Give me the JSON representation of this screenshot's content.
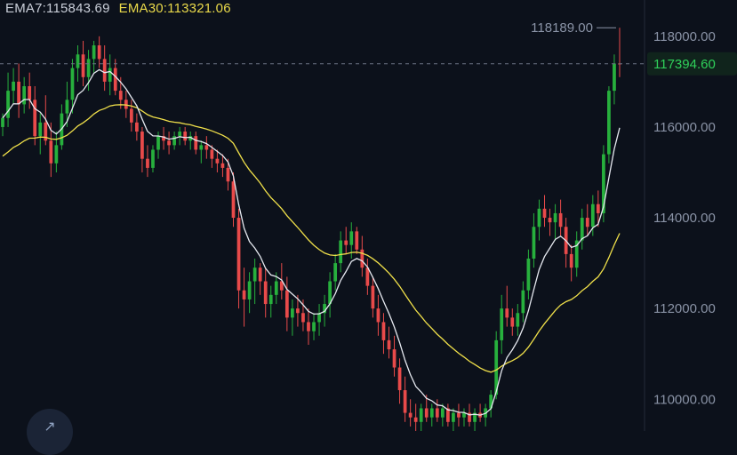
{
  "legend": {
    "ema7": "EMA7:115843.69",
    "ema30": "EMA30:113321.06"
  },
  "chart_data": {
    "type": "candlestick",
    "ylim": [
      109300,
      118800
    ],
    "y_ticks": [
      {
        "value": 118000,
        "label": "118000.00"
      },
      {
        "value": 116000,
        "label": "116000.00"
      },
      {
        "value": 114000,
        "label": "114000.00"
      },
      {
        "value": 112000,
        "label": "112000.00"
      },
      {
        "value": 110000,
        "label": "110000.00"
      }
    ],
    "high_marker": {
      "value": 118189,
      "label": "118189.00"
    },
    "current_price": {
      "value": 117394.6,
      "label": "117394.60"
    },
    "candles": [
      [
        116000,
        116300,
        115800,
        116200
      ],
      [
        116200,
        117200,
        116000,
        116800
      ],
      [
        116800,
        117300,
        116500,
        117000
      ],
      [
        117000,
        117400,
        116200,
        116500
      ],
      [
        116500,
        117100,
        116300,
        116900
      ],
      [
        116900,
        117200,
        116400,
        116600
      ],
      [
        116600,
        116900,
        115600,
        115800
      ],
      [
        115800,
        116300,
        115400,
        116100
      ],
      [
        116100,
        116700,
        115600,
        115700
      ],
      [
        115700,
        116100,
        114900,
        115200
      ],
      [
        115200,
        115900,
        115000,
        115600
      ],
      [
        115600,
        116500,
        115500,
        116300
      ],
      [
        116300,
        117000,
        116000,
        116600
      ],
      [
        116600,
        117500,
        116300,
        117300
      ],
      [
        117300,
        117800,
        117000,
        117600
      ],
      [
        117600,
        117900,
        116900,
        117100
      ],
      [
        117100,
        117700,
        116800,
        117500
      ],
      [
        117500,
        117900,
        117200,
        117800
      ],
      [
        117800,
        118000,
        117300,
        117500
      ],
      [
        117500,
        117800,
        116800,
        117000
      ],
      [
        117000,
        117600,
        116700,
        117300
      ],
      [
        117300,
        117500,
        116700,
        116800
      ],
      [
        116800,
        117100,
        116400,
        116600
      ],
      [
        116600,
        116800,
        116200,
        116400
      ],
      [
        116400,
        116600,
        115900,
        116100
      ],
      [
        116100,
        116300,
        115700,
        115900
      ],
      [
        115900,
        116000,
        115000,
        115300
      ],
      [
        115300,
        115600,
        114900,
        115100
      ],
      [
        115100,
        115600,
        115000,
        115500
      ],
      [
        115500,
        115900,
        115300,
        115800
      ],
      [
        115800,
        116000,
        115500,
        115700
      ],
      [
        115700,
        115900,
        115400,
        115600
      ],
      [
        115600,
        115900,
        115500,
        115800
      ],
      [
        115800,
        116000,
        115600,
        115900
      ],
      [
        115900,
        116000,
        115600,
        115700
      ],
      [
        115700,
        115900,
        115500,
        115800
      ],
      [
        115800,
        115900,
        115400,
        115500
      ],
      [
        115500,
        115700,
        115200,
        115600
      ],
      [
        115600,
        115800,
        115300,
        115500
      ],
      [
        115500,
        115600,
        115100,
        115300
      ],
      [
        115300,
        115500,
        115000,
        115200
      ],
      [
        115200,
        115400,
        114900,
        115100
      ],
      [
        115100,
        115300,
        114600,
        114800
      ],
      [
        114800,
        115000,
        113800,
        114000
      ],
      [
        114000,
        114200,
        112000,
        112400
      ],
      [
        112400,
        112900,
        111600,
        112200
      ],
      [
        112200,
        112800,
        111900,
        112600
      ],
      [
        112600,
        113100,
        112100,
        112900
      ],
      [
        112900,
        113000,
        112300,
        112600
      ],
      [
        112600,
        112900,
        111800,
        112100
      ],
      [
        112100,
        112500,
        111800,
        112300
      ],
      [
        112300,
        112800,
        112100,
        112600
      ],
      [
        112600,
        113000,
        112200,
        112400
      ],
      [
        112400,
        112700,
        111500,
        111800
      ],
      [
        111800,
        112200,
        111400,
        112000
      ],
      [
        112000,
        112300,
        111600,
        111900
      ],
      [
        111900,
        112200,
        111500,
        111700
      ],
      [
        111700,
        112000,
        111200,
        111500
      ],
      [
        111500,
        111900,
        111300,
        111700
      ],
      [
        111700,
        112100,
        111400,
        111900
      ],
      [
        111900,
        112300,
        111600,
        112100
      ],
      [
        112100,
        112800,
        111800,
        112600
      ],
      [
        112600,
        113200,
        112400,
        113000
      ],
      [
        113000,
        113700,
        112800,
        113500
      ],
      [
        113500,
        113800,
        113200,
        113400
      ],
      [
        113400,
        113900,
        113100,
        113700
      ],
      [
        113700,
        113800,
        113200,
        113300
      ],
      [
        113300,
        113600,
        112700,
        112900
      ],
      [
        112900,
        113100,
        112300,
        112500
      ],
      [
        112500,
        112700,
        111800,
        112000
      ],
      [
        112000,
        112300,
        111400,
        111700
      ],
      [
        111700,
        111900,
        111000,
        111300
      ],
      [
        111300,
        111600,
        110900,
        111100
      ],
      [
        111100,
        111400,
        110500,
        110700
      ],
      [
        110700,
        110900,
        109900,
        110200
      ],
      [
        110200,
        110500,
        109500,
        109700
      ],
      [
        109700,
        110000,
        109400,
        109600
      ],
      [
        109600,
        109900,
        109300,
        109500
      ],
      [
        109500,
        109900,
        109300,
        109800
      ],
      [
        109800,
        110100,
        109500,
        109600
      ],
      [
        109600,
        109900,
        109400,
        109800
      ],
      [
        109800,
        110000,
        109500,
        109600
      ],
      [
        109600,
        109900,
        109400,
        109800
      ],
      [
        109800,
        109900,
        109400,
        109500
      ],
      [
        109500,
        109800,
        109300,
        109700
      ],
      [
        109700,
        109900,
        109400,
        109600
      ],
      [
        109600,
        109800,
        109400,
        109700
      ],
      [
        109700,
        109900,
        109400,
        109500
      ],
      [
        109500,
        109800,
        109300,
        109700
      ],
      [
        109700,
        109900,
        109500,
        109600
      ],
      [
        109600,
        109900,
        109400,
        109800
      ],
      [
        109800,
        110200,
        109600,
        110100
      ],
      [
        110100,
        111500,
        110000,
        111300
      ],
      [
        111300,
        112300,
        111000,
        112000
      ],
      [
        112000,
        112500,
        111600,
        111800
      ],
      [
        111800,
        112000,
        111400,
        111600
      ],
      [
        111600,
        112100,
        111400,
        111900
      ],
      [
        111900,
        112600,
        111700,
        112400
      ],
      [
        112400,
        113300,
        112200,
        113100
      ],
      [
        113100,
        114100,
        112900,
        113800
      ],
      [
        113800,
        114400,
        113500,
        114200
      ],
      [
        114200,
        114500,
        113800,
        114000
      ],
      [
        114000,
        114200,
        113600,
        113900
      ],
      [
        113900,
        114300,
        113500,
        114100
      ],
      [
        114100,
        114400,
        113600,
        113800
      ],
      [
        113800,
        114000,
        112900,
        113200
      ],
      [
        113200,
        113400,
        112600,
        112900
      ],
      [
        112900,
        113700,
        112700,
        113500
      ],
      [
        113500,
        114200,
        113300,
        114000
      ],
      [
        114000,
        114300,
        113600,
        113800
      ],
      [
        113800,
        114500,
        113600,
        114300
      ],
      [
        114300,
        114600,
        113800,
        114100
      ],
      [
        114100,
        115600,
        113900,
        115400
      ],
      [
        115400,
        116900,
        115200,
        116800
      ],
      [
        116800,
        117600,
        116500,
        117400
      ],
      [
        117400,
        118189,
        117100,
        117394.6
      ]
    ]
  }
}
